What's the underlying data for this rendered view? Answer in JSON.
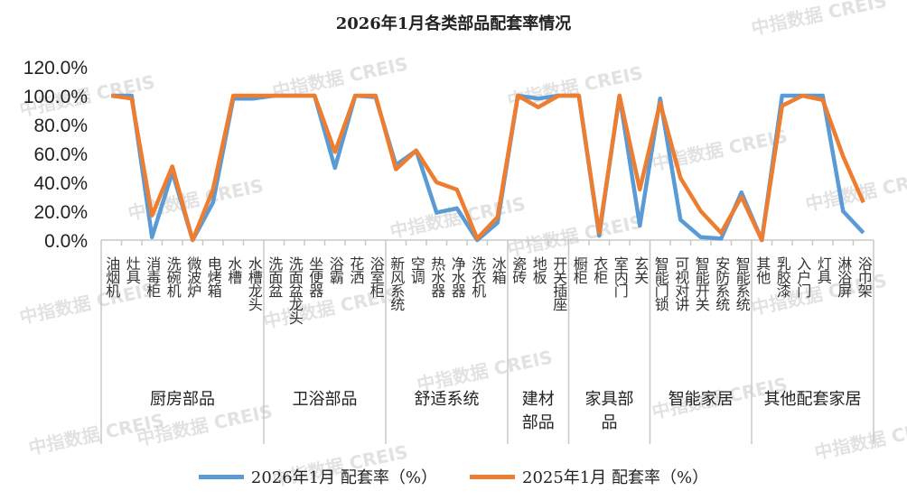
{
  "chart_data": {
    "type": "line",
    "title": "2026年1月各类部品配套率情况",
    "ylim": [
      0,
      120
    ],
    "yticks": [
      "0.0%",
      "20.0%",
      "40.0%",
      "60.0%",
      "80.0%",
      "100.0%",
      "120.0%"
    ],
    "grid": false,
    "legend_position": "bottom",
    "watermark": "中指数据 CREIS",
    "groups": [
      {
        "name": "厨房部品",
        "count": 8
      },
      {
        "name": "卫浴部品",
        "count": 6
      },
      {
        "name": "舒适系统",
        "count": 6
      },
      {
        "name": "建材部品",
        "count": 3
      },
      {
        "name": "家具部品",
        "count": 4
      },
      {
        "name": "智能家居",
        "count": 5
      },
      {
        "name": "其他配套家居",
        "count": 6
      }
    ],
    "categories": [
      "油烟机",
      "灶具",
      "消毒柜",
      "洗碗机",
      "微波炉",
      "电烤箱",
      "水槽",
      "水槽龙头",
      "洗面盆",
      "洗面盆龙头",
      "坐便器",
      "浴霸",
      "花洒",
      "浴室柜",
      "新风系统",
      "空调",
      "热水器",
      "净水器",
      "洗衣机",
      "冰箱",
      "瓷砖",
      "地板",
      "开关插座",
      "橱柜",
      "衣柜",
      "室内门",
      "玄关",
      "智能门锁",
      "可视对讲",
      "智能开关",
      "安防系统",
      "智能系统",
      "其他",
      "乳胶漆",
      "入户门",
      "灯具",
      "淋浴屏",
      "浴巾架"
    ],
    "series": [
      {
        "name": "2026年1月 配套率（%）",
        "color": "#5B9BD5",
        "values": [
          100,
          100,
          2,
          47,
          0,
          26,
          98,
          98,
          100,
          100,
          100,
          50,
          100,
          99,
          52,
          62,
          19,
          22,
          0,
          12,
          100,
          98,
          100,
          100,
          3,
          100,
          10,
          98,
          14,
          2,
          1,
          33,
          0,
          100,
          100,
          100,
          20,
          5
        ]
      },
      {
        "name": "2025年1月 配套率（%）",
        "color": "#ED7D31",
        "values": [
          100,
          98,
          17,
          51,
          0,
          35,
          100,
          100,
          100,
          100,
          100,
          61,
          100,
          100,
          49,
          62,
          40,
          35,
          1,
          16,
          100,
          92,
          100,
          100,
          5,
          100,
          35,
          95,
          43,
          20,
          5,
          30,
          0,
          93,
          100,
          97,
          58,
          26
        ]
      }
    ]
  }
}
